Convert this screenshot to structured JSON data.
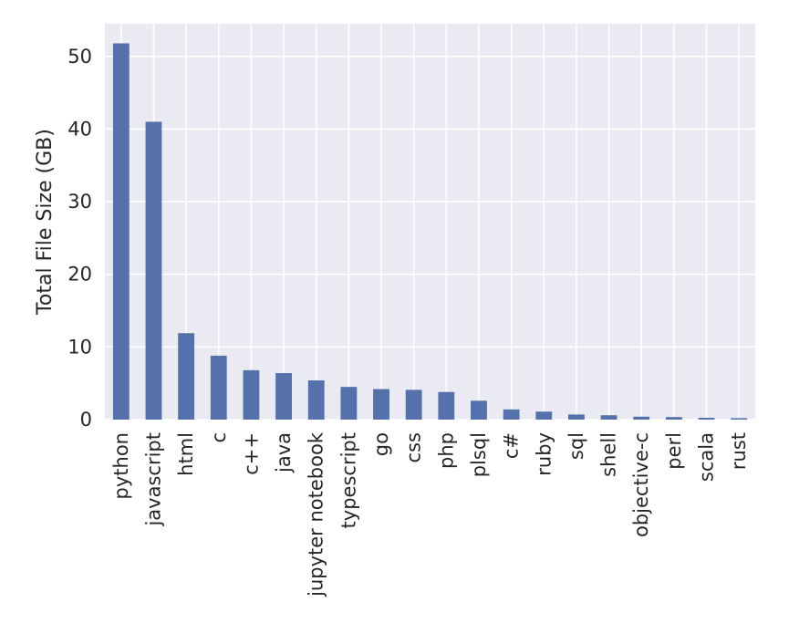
{
  "chart_data": {
    "type": "bar",
    "title": "",
    "xlabel": "",
    "ylabel": "Total File Size (GB)",
    "ylim": [
      0,
      54.5
    ],
    "yticks": [
      0,
      10,
      20,
      30,
      40,
      50
    ],
    "grid": true,
    "bar_color": "#5471ab",
    "background_color": "#eaeaf2",
    "grid_color": "#ffffff",
    "categories": [
      "python",
      "javascript",
      "html",
      "c",
      "c++",
      "java",
      "jupyter notebook",
      "typescript",
      "go",
      "css",
      "php",
      "plsql",
      "c#",
      "ruby",
      "sql",
      "shell",
      "objective-c",
      "perl",
      "scala",
      "rust"
    ],
    "values": [
      51.8,
      41.0,
      11.9,
      8.8,
      6.8,
      6.4,
      5.4,
      4.5,
      4.2,
      4.1,
      3.8,
      2.6,
      1.4,
      1.1,
      0.7,
      0.6,
      0.4,
      0.35,
      0.25,
      0.2
    ]
  }
}
